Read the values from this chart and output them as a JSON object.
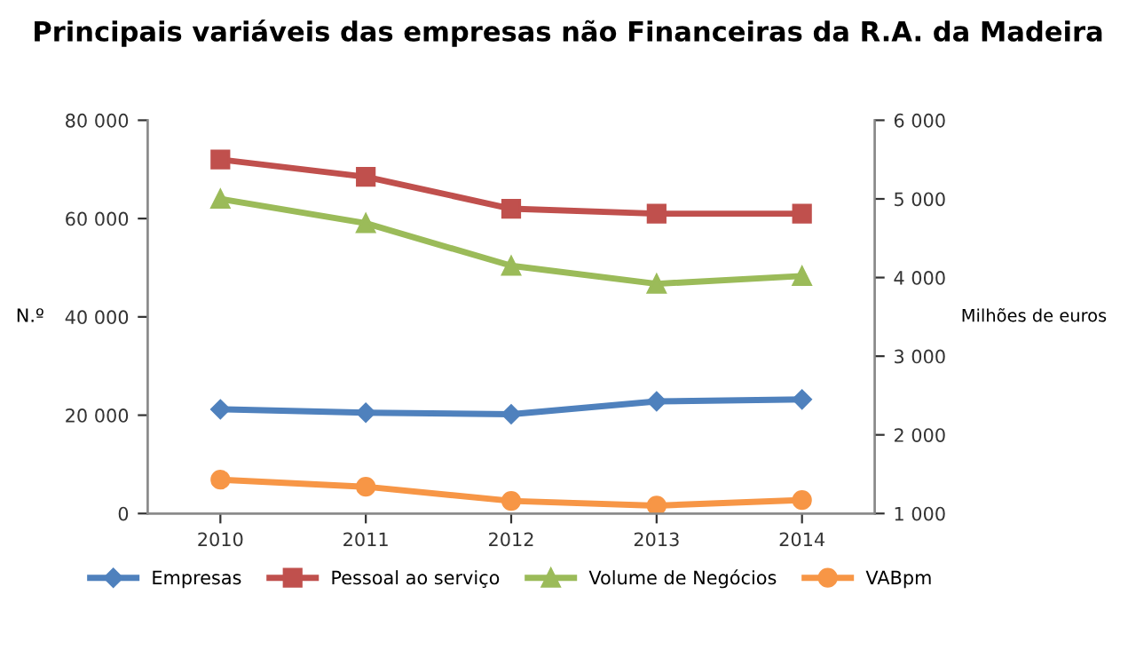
{
  "chart_data": {
    "type": "line",
    "title": "Principais variáveis das empresas não Financeiras da R.A. da Madeira",
    "categories": [
      "2010",
      "2011",
      "2012",
      "2013",
      "2014"
    ],
    "ylabel": "N.º",
    "y2label": "Milhões de euros",
    "ylim": [
      0,
      80000
    ],
    "yticks": [
      {
        "value": 0,
        "label": "0"
      },
      {
        "value": 20000,
        "label": "20 000"
      },
      {
        "value": 40000,
        "label": "40 000"
      },
      {
        "value": 60000,
        "label": "60 000"
      },
      {
        "value": 80000,
        "label": "80 000"
      }
    ],
    "y2lim": [
      1000,
      6000
    ],
    "y2ticks": [
      {
        "value": 1000,
        "label": "1 000"
      },
      {
        "value": 2000,
        "label": "2 000"
      },
      {
        "value": 3000,
        "label": "3 000"
      },
      {
        "value": 4000,
        "label": "4 000"
      },
      {
        "value": 5000,
        "label": "5 000"
      },
      {
        "value": 6000,
        "label": "6 000"
      }
    ],
    "grid": false,
    "legend": "bottom",
    "series": [
      {
        "name": "Empresas",
        "color": "#4f81bd",
        "marker": "diamond",
        "values": [
          21200,
          20500,
          20200,
          22800,
          23200
        ]
      },
      {
        "name": "Pessoal ao serviço",
        "color": "#c0504d",
        "marker": "square",
        "values": [
          72000,
          68500,
          62000,
          61000,
          61000
        ]
      },
      {
        "name": "Volume de Negócios",
        "color": "#9bbb59",
        "marker": "triangle",
        "axis": "y2",
        "values": [
          5000,
          4690,
          4150,
          3920,
          4020
        ]
      },
      {
        "name": "VABpm",
        "color": "#f79646",
        "marker": "circle",
        "axis": "y2",
        "values": [
          1430,
          1340,
          1160,
          1100,
          1170
        ]
      }
    ]
  }
}
